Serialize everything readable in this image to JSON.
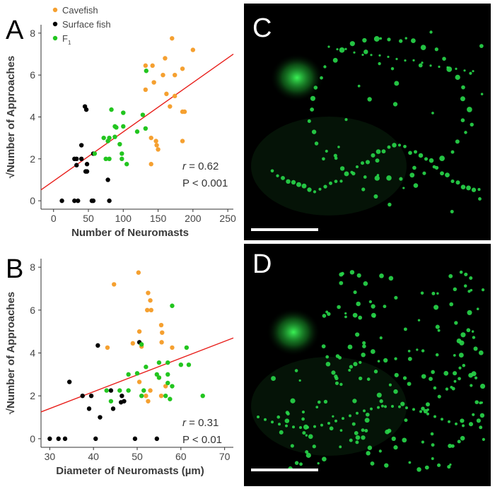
{
  "panels": {
    "A": "A",
    "B": "B",
    "C": "C",
    "D": "D"
  },
  "colors": {
    "cavefish": "#f5a030",
    "surface": "#000000",
    "f1": "#22c51f",
    "fit": "#e8201c",
    "fluor": "#28d84a"
  },
  "legend": {
    "cavefish": "Cavefish",
    "surface": "Surface fish",
    "f1_main": "F",
    "f1_sub": "1"
  },
  "chart_data": [
    {
      "type": "scatter",
      "panel": "A",
      "xlabel": "Number of Neuromasts",
      "ylabel": "√Number of Approaches",
      "xlim": [
        -18,
        258
      ],
      "ylim": [
        -0.4,
        8.4
      ],
      "xticks": [
        "0",
        "50",
        "100",
        "150",
        "200",
        "250"
      ],
      "yticks": [
        "0",
        "2",
        "4",
        "6",
        "8"
      ],
      "fit": {
        "x": [
          -18,
          258
        ],
        "y": [
          0.52,
          7.0
        ]
      },
      "stats": {
        "r_label": "r",
        "r_value": " = 0.62",
        "p": "P < 0.001"
      },
      "series": [
        {
          "name": "Cavefish",
          "points": [
            [
              170,
              7.75
            ],
            [
              200,
              7.2
            ],
            [
              160,
              6.8
            ],
            [
              132,
              6.45
            ],
            [
              142,
              6.45
            ],
            [
              185,
              6.3
            ],
            [
              157,
              6.0
            ],
            [
              174,
              6.0
            ],
            [
              144,
              5.65
            ],
            [
              132,
              5.3
            ],
            [
              162,
              5.1
            ],
            [
              174,
              5.0
            ],
            [
              167,
              4.5
            ],
            [
              185,
              4.25
            ],
            [
              188,
              4.25
            ],
            [
              140,
              3.0
            ],
            [
              147,
              2.85
            ],
            [
              185,
              2.85
            ],
            [
              148,
              2.65
            ],
            [
              150,
              2.45
            ],
            [
              140,
              1.75
            ]
          ]
        },
        {
          "name": "Surface fish",
          "points": [
            [
              45,
              4.5
            ],
            [
              47,
              4.35
            ],
            [
              40,
              2.65
            ],
            [
              30,
              2.0
            ],
            [
              33,
              2.0
            ],
            [
              40,
              2.0
            ],
            [
              48,
              1.75
            ],
            [
              33,
              1.7
            ],
            [
              46,
              1.4
            ],
            [
              48,
              1.4
            ],
            [
              57,
              2.25
            ],
            [
              78,
              1.0
            ],
            [
              12,
              0
            ],
            [
              30,
              0
            ],
            [
              35,
              0
            ],
            [
              55,
              0
            ],
            [
              57,
              0
            ],
            [
              80,
              0
            ]
          ]
        },
        {
          "name": "F1",
          "points": [
            [
              133,
              6.2
            ],
            [
              83,
              4.35
            ],
            [
              100,
              4.2
            ],
            [
              128,
              4.1
            ],
            [
              88,
              3.55
            ],
            [
              90,
              3.5
            ],
            [
              100,
              3.55
            ],
            [
              132,
              3.45
            ],
            [
              88,
              3.05
            ],
            [
              72,
              3.0
            ],
            [
              80,
              3.0
            ],
            [
              78,
              2.85
            ],
            [
              95,
              2.7
            ],
            [
              120,
              3.3
            ],
            [
              98,
              2.25
            ],
            [
              75,
              2.0
            ],
            [
              80,
              2.0
            ],
            [
              98,
              2.0
            ],
            [
              105,
              1.75
            ],
            [
              59,
              2.25
            ]
          ]
        }
      ]
    },
    {
      "type": "scatter",
      "panel": "B",
      "xlabel": "Diameter of Neuromasts (µm)",
      "ylabel": "√Number of Approaches",
      "xlim": [
        28,
        72
      ],
      "ylim": [
        -0.4,
        8.4
      ],
      "xticks": [
        "30",
        "40",
        "50",
        "60",
        "70"
      ],
      "yticks": [
        "0",
        "2",
        "4",
        "6",
        "8"
      ],
      "fit": {
        "x": [
          28,
          72
        ],
        "y": [
          1.25,
          4.7
        ]
      },
      "stats": {
        "r_label": "r",
        "r_value": " = 0.31",
        "p": "P < 0.01"
      },
      "series": [
        {
          "name": "Cavefish",
          "points": [
            [
              50.3,
              7.75
            ],
            [
              44.7,
              7.2
            ],
            [
              52.5,
              6.8
            ],
            [
              53,
              6.45
            ],
            [
              52.3,
              6.0
            ],
            [
              53.2,
              6.0
            ],
            [
              55.5,
              5.3
            ],
            [
              50.5,
              5.0
            ],
            [
              55.7,
              4.95
            ],
            [
              55.6,
              4.5
            ],
            [
              49,
              4.45
            ],
            [
              51,
              4.3
            ],
            [
              43.2,
              4.25
            ],
            [
              58,
              4.25
            ],
            [
              55,
              2.85
            ],
            [
              56.5,
              2.45
            ],
            [
              53,
              2.25
            ],
            [
              52,
              2.0
            ],
            [
              52.5,
              1.75
            ],
            [
              50.5,
              2.65
            ],
            [
              55.5,
              2.0
            ]
          ]
        },
        {
          "name": "Surface fish",
          "points": [
            [
              50.5,
              4.5
            ],
            [
              41,
              4.35
            ],
            [
              34.5,
              2.65
            ],
            [
              37.5,
              2.0
            ],
            [
              39.5,
              2.0
            ],
            [
              44,
              2.25
            ],
            [
              46.5,
              2.0
            ],
            [
              47,
              1.75
            ],
            [
              41.5,
              1.0
            ],
            [
              44.5,
              1.4
            ],
            [
              46.3,
              1.7
            ],
            [
              39,
              1.4
            ],
            [
              30,
              0
            ],
            [
              32,
              0
            ],
            [
              33.5,
              0
            ],
            [
              40.5,
              0
            ],
            [
              49.5,
              0
            ],
            [
              54.5,
              0
            ]
          ]
        },
        {
          "name": "F1",
          "points": [
            [
              58,
              6.2
            ],
            [
              51,
              4.4
            ],
            [
              61.3,
              4.25
            ],
            [
              55,
              3.55
            ],
            [
              57,
              3.55
            ],
            [
              60,
              3.45
            ],
            [
              61.8,
              3.45
            ],
            [
              52,
              3.35
            ],
            [
              50,
              3.05
            ],
            [
              48,
              3.0
            ],
            [
              54.5,
              3.0
            ],
            [
              57,
              3.0
            ],
            [
              55,
              2.85
            ],
            [
              57,
              2.6
            ],
            [
              58,
              2.45
            ],
            [
              51.5,
              2.25
            ],
            [
              48,
              2.25
            ],
            [
              43,
              2.25
            ],
            [
              46,
              2.25
            ],
            [
              56.5,
              2.0
            ],
            [
              65,
              2.0
            ],
            [
              57.5,
              1.85
            ],
            [
              44,
              1.75
            ],
            [
              51,
              2.0
            ]
          ]
        }
      ]
    }
  ]
}
